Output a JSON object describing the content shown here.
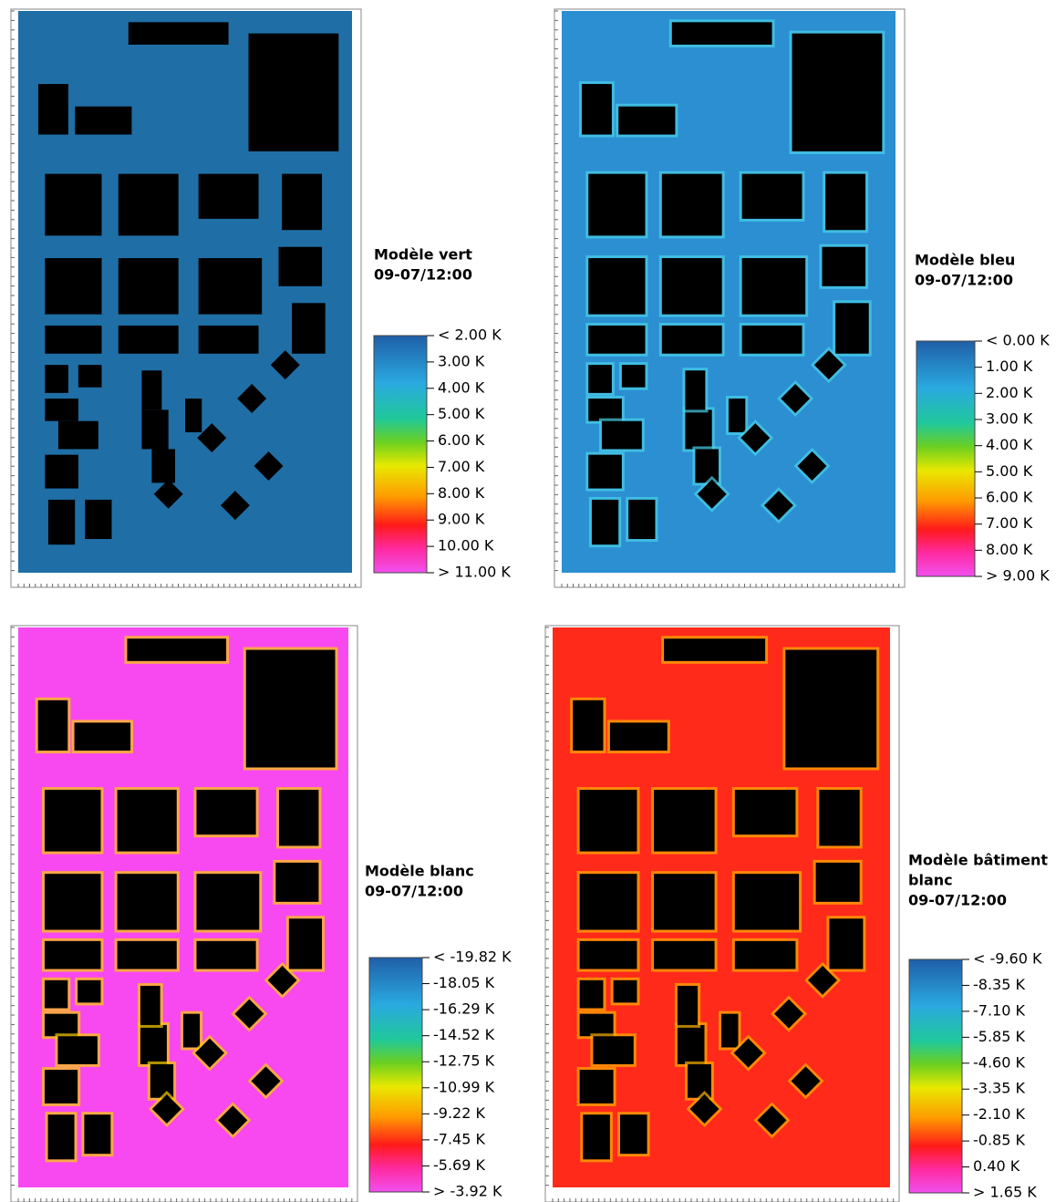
{
  "panels": [
    {
      "title": [
        "Modèle vert",
        "09-07/12:00"
      ],
      "legend": [
        "< 2.00 K",
        "3.00  K",
        "4.00  K",
        "5.00  K",
        "6.00  K",
        "7.00  K",
        "8.00  K",
        "9.00  K",
        "10.00  K",
        "> 11.00 K"
      ]
    },
    {
      "title": [
        "Modèle bleu",
        "09-07/12:00"
      ],
      "legend": [
        "< 0.00 K",
        "1.00  K",
        "2.00  K",
        "3.00  K",
        "4.00  K",
        "5.00  K",
        "6.00  K",
        "7.00  K",
        "8.00  K",
        "> 9.00 K"
      ]
    },
    {
      "title": [
        "Modèle blanc",
        "09-07/12:00"
      ],
      "legend": [
        "< -19.82 K",
        "-18.05  K",
        "-16.29  K",
        "-14.52  K",
        "-12.75  K",
        "-10.99  K",
        "-9.22  K",
        "-7.45  K",
        "-5.69  K",
        "> -3.92 K"
      ]
    },
    {
      "title": [
        "Modèle bâtiment",
        "blanc",
        "09-07/12:00"
      ],
      "legend": [
        "< -9.60 K",
        "-8.35  K",
        "-7.10  K",
        "-5.85  K",
        "-4.60  K",
        "-3.35  K",
        "-2.10  K",
        "-0.85  K",
        "0.40  K",
        "> 1.65 K"
      ]
    }
  ]
}
